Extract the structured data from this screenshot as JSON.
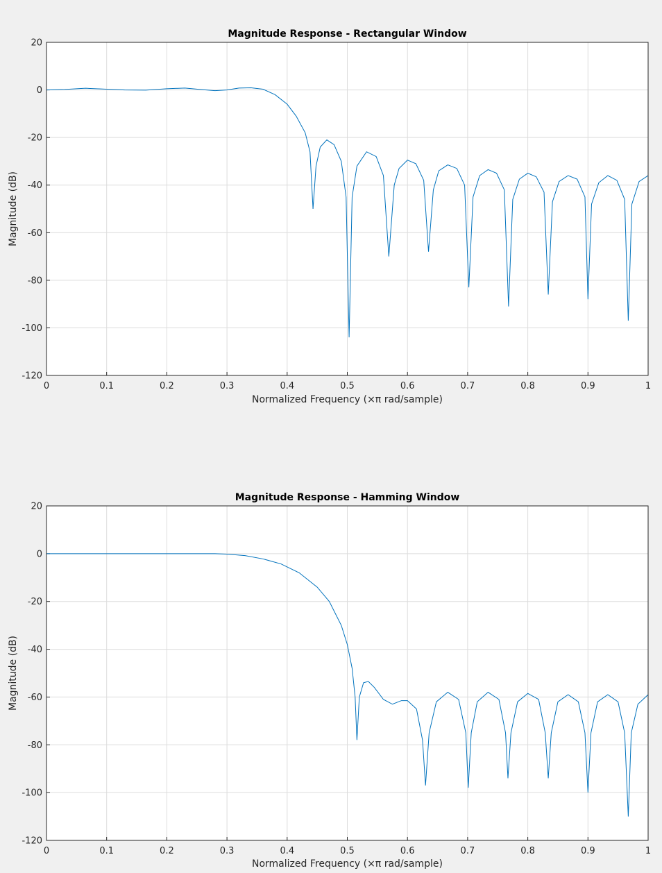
{
  "figure": {
    "background": "#f0f0f0",
    "axes_background": "#ffffff",
    "line_color": "#0072bd",
    "grid_color": "#dcdcdc"
  },
  "chart_data": [
    {
      "type": "line",
      "title": "Magnitude Response - Rectangular Window",
      "xlabel": "Normalized Frequency (×π rad/sample)",
      "ylabel": "Magnitude (dB)",
      "xlim": [
        0,
        1
      ],
      "ylim": [
        -120,
        20
      ],
      "xticks": [
        "0",
        "0.1",
        "0.2",
        "0.3",
        "0.4",
        "0.5",
        "0.6",
        "0.7",
        "0.8",
        "0.9",
        "1"
      ],
      "yticks": [
        "-120",
        "-100",
        "-80",
        "-60",
        "-40",
        "-20",
        "0",
        "20"
      ],
      "grid": true,
      "series": [
        {
          "values": [
            [
              0,
              0
            ],
            [
              0.03,
              0.2
            ],
            [
              0.065,
              0.7
            ],
            [
              0.1,
              0.3
            ],
            [
              0.13,
              0.0
            ],
            [
              0.165,
              -0.1
            ],
            [
              0.2,
              0.5
            ],
            [
              0.23,
              0.8
            ],
            [
              0.26,
              0.1
            ],
            [
              0.28,
              -0.3
            ],
            [
              0.3,
              0.0
            ],
            [
              0.32,
              0.8
            ],
            [
              0.34,
              0.9
            ],
            [
              0.36,
              0.3
            ],
            [
              0.38,
              -2
            ],
            [
              0.4,
              -6
            ],
            [
              0.415,
              -11
            ],
            [
              0.43,
              -18
            ],
            [
              0.438,
              -26
            ],
            [
              0.443,
              -50
            ],
            [
              0.448,
              -32
            ],
            [
              0.455,
              -24
            ],
            [
              0.466,
              -21
            ],
            [
              0.478,
              -23
            ],
            [
              0.49,
              -30
            ],
            [
              0.498,
              -45
            ],
            [
              0.503,
              -104
            ],
            [
              0.508,
              -45
            ],
            [
              0.516,
              -32
            ],
            [
              0.532,
              -26
            ],
            [
              0.548,
              -28
            ],
            [
              0.56,
              -36
            ],
            [
              0.569,
              -70
            ],
            [
              0.578,
              -40
            ],
            [
              0.586,
              -33
            ],
            [
              0.6,
              -29.5
            ],
            [
              0.614,
              -31
            ],
            [
              0.627,
              -38
            ],
            [
              0.635,
              -68
            ],
            [
              0.643,
              -42
            ],
            [
              0.652,
              -34
            ],
            [
              0.667,
              -31.5
            ],
            [
              0.682,
              -33
            ],
            [
              0.695,
              -40
            ],
            [
              0.702,
              -83
            ],
            [
              0.709,
              -45
            ],
            [
              0.72,
              -36
            ],
            [
              0.734,
              -33.5
            ],
            [
              0.748,
              -35
            ],
            [
              0.761,
              -42
            ],
            [
              0.768,
              -91
            ],
            [
              0.775,
              -46
            ],
            [
              0.786,
              -37.5
            ],
            [
              0.8,
              -35
            ],
            [
              0.814,
              -36.5
            ],
            [
              0.827,
              -43
            ],
            [
              0.834,
              -86
            ],
            [
              0.841,
              -47
            ],
            [
              0.852,
              -38.5
            ],
            [
              0.867,
              -36
            ],
            [
              0.882,
              -37.5
            ],
            [
              0.895,
              -45
            ],
            [
              0.9,
              -88
            ],
            [
              0.906,
              -48
            ],
            [
              0.918,
              -39
            ],
            [
              0.933,
              -36
            ],
            [
              0.948,
              -38
            ],
            [
              0.961,
              -46
            ],
            [
              0.967,
              -97
            ],
            [
              0.973,
              -48
            ],
            [
              0.985,
              -38.5
            ],
            [
              1,
              -36
            ]
          ]
        }
      ]
    },
    {
      "type": "line",
      "title": "Magnitude Response - Hamming Window",
      "xlabel": "Normalized Frequency (×π rad/sample)",
      "ylabel": "Magnitude (dB)",
      "xlim": [
        0,
        1
      ],
      "ylim": [
        -120,
        20
      ],
      "xticks": [
        "0",
        "0.1",
        "0.2",
        "0.3",
        "0.4",
        "0.5",
        "0.6",
        "0.7",
        "0.8",
        "0.9",
        "1"
      ],
      "yticks": [
        "-120",
        "-100",
        "-80",
        "-60",
        "-40",
        "-20",
        "0",
        "20"
      ],
      "grid": true,
      "series": [
        {
          "values": [
            [
              0,
              0
            ],
            [
              0.1,
              0
            ],
            [
              0.2,
              0
            ],
            [
              0.28,
              0
            ],
            [
              0.3,
              -0.2
            ],
            [
              0.33,
              -0.8
            ],
            [
              0.36,
              -2.2
            ],
            [
              0.39,
              -4.3
            ],
            [
              0.42,
              -8
            ],
            [
              0.45,
              -14
            ],
            [
              0.47,
              -20
            ],
            [
              0.49,
              -30
            ],
            [
              0.5,
              -38
            ],
            [
              0.508,
              -48
            ],
            [
              0.513,
              -60
            ],
            [
              0.516,
              -78
            ],
            [
              0.52,
              -60
            ],
            [
              0.527,
              -54
            ],
            [
              0.535,
              -53.5
            ],
            [
              0.545,
              -56
            ],
            [
              0.56,
              -61
            ],
            [
              0.575,
              -63
            ],
            [
              0.59,
              -61.5
            ],
            [
              0.6,
              -61.5
            ],
            [
              0.615,
              -65
            ],
            [
              0.625,
              -78
            ],
            [
              0.63,
              -97
            ],
            [
              0.636,
              -75
            ],
            [
              0.648,
              -62
            ],
            [
              0.667,
              -58
            ],
            [
              0.685,
              -61
            ],
            [
              0.697,
              -75
            ],
            [
              0.701,
              -98
            ],
            [
              0.706,
              -75
            ],
            [
              0.716,
              -62
            ],
            [
              0.734,
              -58
            ],
            [
              0.752,
              -61
            ],
            [
              0.763,
              -75
            ],
            [
              0.767,
              -94
            ],
            [
              0.772,
              -75
            ],
            [
              0.783,
              -62
            ],
            [
              0.8,
              -58.5
            ],
            [
              0.818,
              -61
            ],
            [
              0.829,
              -75
            ],
            [
              0.834,
              -94
            ],
            [
              0.839,
              -75
            ],
            [
              0.85,
              -62
            ],
            [
              0.867,
              -59
            ],
            [
              0.884,
              -62
            ],
            [
              0.895,
              -75
            ],
            [
              0.9,
              -100
            ],
            [
              0.905,
              -75
            ],
            [
              0.916,
              -62
            ],
            [
              0.933,
              -59
            ],
            [
              0.95,
              -62
            ],
            [
              0.961,
              -75
            ],
            [
              0.967,
              -110
            ],
            [
              0.972,
              -75
            ],
            [
              0.983,
              -63
            ],
            [
              1,
              -59
            ]
          ]
        }
      ]
    }
  ]
}
